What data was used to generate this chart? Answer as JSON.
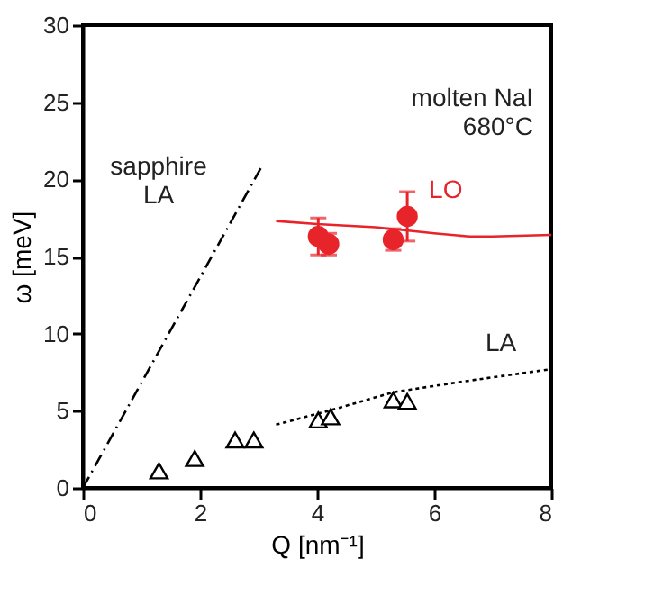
{
  "chart_data": {
    "type": "scatter",
    "xlabel": "Q [nm⁻¹]",
    "ylabel": "ω [meV]",
    "xlim": [
      0,
      8
    ],
    "xticks": [
      0,
      2,
      4,
      6,
      8
    ],
    "ylim": [
      0,
      30
    ],
    "yticks": [
      0,
      5,
      10,
      15,
      20,
      25,
      30
    ],
    "grid": false,
    "series": [
      {
        "type": "line",
        "color": "#000000",
        "line_style": "dashed",
        "x": [
          0,
          3.05
        ],
        "values": [
          0,
          20.8
        ]
      },
      {
        "type": "line",
        "color": "#000000",
        "line_style": "dotted",
        "x": [
          3.3,
          4.2,
          5.3,
          6.5,
          8
        ],
        "values": [
          4.1,
          5.0,
          6.2,
          6.9,
          7.7
        ]
      },
      {
        "type": "line",
        "color": "#e8242b",
        "line_style": "solid",
        "x": [
          3.3,
          4,
          5,
          6,
          6.6,
          7,
          8
        ],
        "values": [
          17.3,
          17.1,
          16.9,
          16.5,
          16.3,
          16.3,
          16.4
        ]
      },
      {
        "color": "#000000",
        "marker": "triangle",
        "x": [
          1.3,
          1.91,
          2.6,
          2.92,
          4.02,
          4.23,
          5.3,
          5.54
        ],
        "values": [
          1.1,
          1.9,
          3.1,
          3.1,
          4.4,
          4.6,
          5.7,
          5.6
        ]
      },
      {
        "name": "LO",
        "color": "#e8242b",
        "marker": "circle",
        "x": [
          4.02,
          4.2,
          5.3,
          5.54
        ],
        "values": [
          16.3,
          15.8,
          16.1,
          17.6
        ],
        "errors": [
          1.2,
          0.7,
          0.7,
          1.6
        ]
      }
    ],
    "annotations": [
      "molten NaI\n680°C",
      "sapphire\nLA",
      "LA"
    ]
  }
}
